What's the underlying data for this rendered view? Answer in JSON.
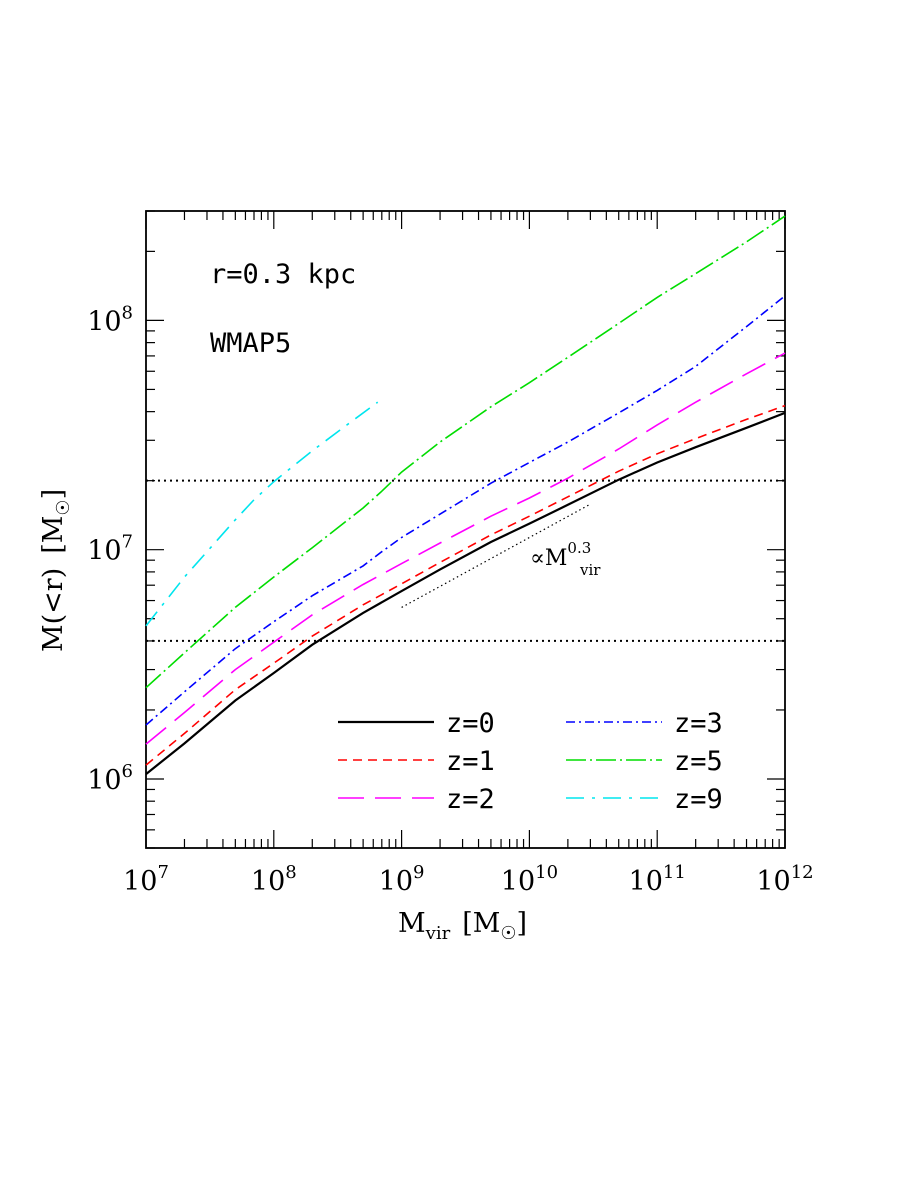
{
  "chart_data": {
    "type": "line",
    "xscale": "log",
    "yscale": "log",
    "xlim": [
      10000000.0,
      1000000000000.0
    ],
    "ylim": [
      500000,
      300000000
    ],
    "xlabel": {
      "main": "M",
      "sub": "vir",
      "unit_open": "[M",
      "unit_close": "]"
    },
    "ylabel": {
      "main": "M(<r)",
      "unit_open": "[M",
      "unit_close": "]"
    },
    "x_ticks": [
      {
        "value": 10000000.0,
        "base": "10",
        "exp": "7"
      },
      {
        "value": 100000000.0,
        "base": "10",
        "exp": "8"
      },
      {
        "value": 1000000000.0,
        "base": "10",
        "exp": "9"
      },
      {
        "value": 10000000000.0,
        "base": "10",
        "exp": "10"
      },
      {
        "value": 100000000000.0,
        "base": "10",
        "exp": "11"
      },
      {
        "value": 1000000000000.0,
        "base": "10",
        "exp": "12"
      }
    ],
    "y_ticks": [
      {
        "value": 1000000.0,
        "base": "10",
        "exp": "6"
      },
      {
        "value": 10000000.0,
        "base": "10",
        "exp": "7"
      },
      {
        "value": 100000000.0,
        "base": "10",
        "exp": "8"
      }
    ],
    "annotations": {
      "radius": "r=0.3 kpc",
      "cosmology": "WMAP5",
      "slope_prefix": "∝M",
      "slope_sup": "0.3",
      "slope_sub": "vir"
    },
    "reference_lines": [
      {
        "kind": "horizontal",
        "y": 20000000
      },
      {
        "kind": "horizontal",
        "y": 4000000
      },
      {
        "kind": "slope",
        "points": [
          [
            1000000000.0,
            5600000
          ],
          [
            30000000000.0,
            15800000
          ]
        ]
      }
    ],
    "series": [
      {
        "name": "z=0",
        "color": "#000000",
        "dash": "",
        "width": 2.2,
        "points": [
          [
            10000000.0,
            1050000.0
          ],
          [
            20000000.0,
            1430000.0
          ],
          [
            50000000.0,
            2200000.0
          ],
          [
            100000000.0,
            2900000.0
          ],
          [
            200000000.0,
            3850000.0
          ],
          [
            500000000.0,
            5300000.0
          ],
          [
            1000000000.0,
            6600000.0
          ],
          [
            2000000000.0,
            8200000.0
          ],
          [
            5000000000.0,
            10800000.0
          ],
          [
            10000000000.0,
            13000000.0
          ],
          [
            20000000000.0,
            15700000.0
          ],
          [
            50000000000.0,
            20200000.0
          ],
          [
            100000000000.0,
            24000000.0
          ],
          [
            200000000000.0,
            28000000.0
          ],
          [
            500000000000.0,
            34000000.0
          ],
          [
            1000000000000.0,
            39500000.0
          ]
        ]
      },
      {
        "name": "z=1",
        "color": "#ff0000",
        "dash": "9 6",
        "width": 1.6,
        "points": [
          [
            10000000.0,
            1150000.0
          ],
          [
            20000000.0,
            1580000.0
          ],
          [
            50000000.0,
            2450000.0
          ],
          [
            100000000.0,
            3200000.0
          ],
          [
            200000000.0,
            4200000.0
          ],
          [
            500000000.0,
            5750000.0
          ],
          [
            1000000000.0,
            7100000.0
          ],
          [
            2000000000.0,
            8800000.0
          ],
          [
            5000000000.0,
            11600000.0
          ],
          [
            10000000000.0,
            14000000.0
          ],
          [
            20000000000.0,
            17000000.0
          ],
          [
            50000000000.0,
            22000000.0
          ],
          [
            100000000000.0,
            26200000.0
          ],
          [
            200000000000.0,
            30500000.0
          ],
          [
            500000000000.0,
            37000000.0
          ],
          [
            1000000000000.0,
            42500000.0
          ]
        ]
      },
      {
        "name": "z=2",
        "color": "#ff00ff",
        "dash": "26 11",
        "width": 1.6,
        "points": [
          [
            10000000.0,
            1420000.0
          ],
          [
            20000000.0,
            1950000.0
          ],
          [
            50000000.0,
            3000000.0
          ],
          [
            100000000.0,
            3950000.0
          ],
          [
            200000000.0,
            5200000.0
          ],
          [
            500000000.0,
            7050000.0
          ],
          [
            1000000000.0,
            8700000.0
          ],
          [
            2000000000.0,
            10700000.0
          ],
          [
            5000000000.0,
            14000000.0
          ],
          [
            10000000000.0,
            16800000.0
          ],
          [
            20000000000.0,
            20500000.0
          ],
          [
            50000000000.0,
            27500000.0
          ],
          [
            100000000000.0,
            35000000.0
          ],
          [
            200000000000.0,
            44000000.0
          ],
          [
            500000000000.0,
            58500000.0
          ],
          [
            1000000000000.0,
            72000000.0
          ]
        ]
      },
      {
        "name": "z=3",
        "color": "#0000ff",
        "dash": "9 4 2 4",
        "width": 1.6,
        "points": [
          [
            10000000.0,
            1720000.0
          ],
          [
            20000000.0,
            2400000.0
          ],
          [
            50000000.0,
            3700000.0
          ],
          [
            100000000.0,
            4850000.0
          ],
          [
            200000000.0,
            6300000.0
          ],
          [
            500000000.0,
            8500000.0
          ],
          [
            700000000.0,
            9800000.0
          ],
          [
            1000000000.0,
            11300000.0
          ],
          [
            2000000000.0,
            14300000.0
          ],
          [
            5000000000.0,
            19500000.0
          ],
          [
            10000000000.0,
            24000000.0
          ],
          [
            20000000000.0,
            29500000.0
          ],
          [
            50000000000.0,
            39500000.0
          ],
          [
            100000000000.0,
            49500000.0
          ],
          [
            200000000000.0,
            63000000.0
          ],
          [
            500000000000.0,
            94000000.0
          ],
          [
            1000000000000.0,
            128000000.0
          ]
        ]
      },
      {
        "name": "z=5",
        "color": "#00dd00",
        "dash": "20 4 2 4",
        "width": 1.6,
        "points": [
          [
            10000000.0,
            2500000.0
          ],
          [
            20000000.0,
            3550000.0
          ],
          [
            50000000.0,
            5600000.0
          ],
          [
            100000000.0,
            7600000.0
          ],
          [
            200000000.0,
            10200000.0
          ],
          [
            500000000.0,
            15200000.0
          ],
          [
            700000000.0,
            18000000.0
          ],
          [
            1000000000.0,
            21800000.0
          ],
          [
            2000000000.0,
            29500000.0
          ],
          [
            5000000000.0,
            42000000.0
          ],
          [
            10000000000.0,
            53500000.0
          ],
          [
            20000000000.0,
            69000000.0
          ],
          [
            50000000000.0,
            97000000.0
          ],
          [
            100000000000.0,
            126000000.0
          ],
          [
            200000000000.0,
            160000000.0
          ],
          [
            500000000000.0,
            220000000.0
          ],
          [
            1000000000000.0,
            285000000.0
          ]
        ]
      },
      {
        "name": "z=9",
        "color": "#00e5ee",
        "dash": "18 8 3 8",
        "width": 1.6,
        "points": [
          [
            10000000.0,
            4650000.0
          ],
          [
            15000000.0,
            6200000.0
          ],
          [
            20000000.0,
            7600000.0
          ],
          [
            30000000.0,
            9800000.0
          ],
          [
            50000000.0,
            13500000.0
          ],
          [
            70000000.0,
            16500000.0
          ],
          [
            100000000.0,
            19800000.0
          ],
          [
            200000000.0,
            27000000.0
          ],
          [
            400000000.0,
            36000000.0
          ],
          [
            650000000.0,
            44000000.0
          ]
        ]
      }
    ]
  }
}
